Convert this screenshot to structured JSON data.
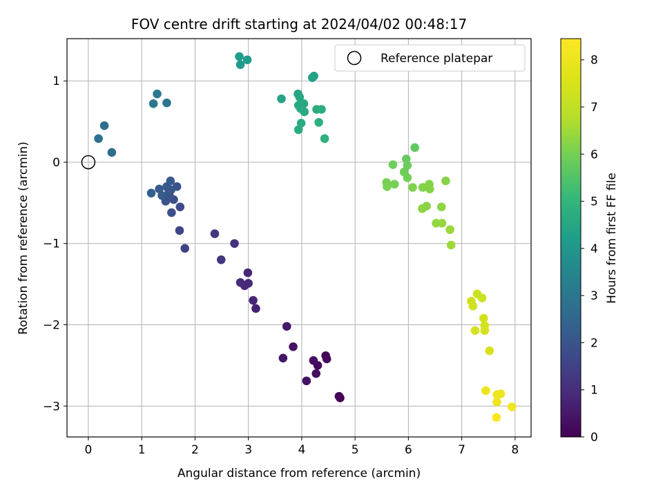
{
  "chart_data": {
    "type": "scatter",
    "title": "FOV centre drift starting at 2024/04/02 00:48:17",
    "xlabel": "Angular distance from reference (arcmin)",
    "ylabel": "Rotation from reference (arcmin)",
    "xlim": [
      -0.4,
      8.3
    ],
    "ylim": [
      -3.38,
      1.52
    ],
    "xticks": [
      0,
      1,
      2,
      3,
      4,
      5,
      6,
      7,
      8
    ],
    "yticks": [
      -3,
      -2,
      -1,
      0,
      1
    ],
    "grid": true,
    "legend": {
      "position": "top-right",
      "entries": [
        "Reference platepar"
      ]
    },
    "reference_point": {
      "x": 0,
      "y": 0
    },
    "colorbar": {
      "label": "Hours from first FF file",
      "range": [
        0,
        8.45
      ],
      "ticks": [
        0,
        1,
        2,
        3,
        4,
        5,
        6,
        7,
        8
      ],
      "colormap": "viridis"
    },
    "points": [
      {
        "x": 4.72,
        "y": -2.9,
        "h": 0.0
      },
      {
        "x": 4.7,
        "y": -2.88,
        "h": 0.05
      },
      {
        "x": 4.45,
        "y": -2.38,
        "h": 0.1
      },
      {
        "x": 4.47,
        "y": -2.42,
        "h": 0.15
      },
      {
        "x": 4.3,
        "y": -2.5,
        "h": 0.2
      },
      {
        "x": 4.27,
        "y": -2.6,
        "h": 0.25
      },
      {
        "x": 4.22,
        "y": -2.44,
        "h": 0.3
      },
      {
        "x": 4.09,
        "y": -2.69,
        "h": 0.35
      },
      {
        "x": 3.84,
        "y": -2.27,
        "h": 0.4
      },
      {
        "x": 3.65,
        "y": -2.41,
        "h": 0.45
      },
      {
        "x": 3.72,
        "y": -2.02,
        "h": 0.5
      },
      {
        "x": 3.14,
        "y": -1.8,
        "h": 0.7
      },
      {
        "x": 3.09,
        "y": -1.7,
        "h": 0.75
      },
      {
        "x": 2.99,
        "y": -1.36,
        "h": 0.8
      },
      {
        "x": 3.0,
        "y": -1.49,
        "h": 0.85
      },
      {
        "x": 2.93,
        "y": -1.52,
        "h": 0.9
      },
      {
        "x": 2.85,
        "y": -1.48,
        "h": 0.95
      },
      {
        "x": 2.74,
        "y": -1.0,
        "h": 1.1
      },
      {
        "x": 2.49,
        "y": -1.2,
        "h": 1.2
      },
      {
        "x": 2.37,
        "y": -0.88,
        "h": 1.25
      },
      {
        "x": 1.81,
        "y": -1.06,
        "h": 1.5
      },
      {
        "x": 1.71,
        "y": -0.84,
        "h": 1.6
      },
      {
        "x": 1.72,
        "y": -0.55,
        "h": 1.75
      },
      {
        "x": 1.56,
        "y": -0.62,
        "h": 1.8
      },
      {
        "x": 1.6,
        "y": -0.46,
        "h": 1.85
      },
      {
        "x": 1.66,
        "y": -0.3,
        "h": 1.9
      },
      {
        "x": 1.45,
        "y": -0.48,
        "h": 1.95
      },
      {
        "x": 1.43,
        "y": -0.42,
        "h": 2.0
      },
      {
        "x": 1.52,
        "y": -0.41,
        "h": 2.0
      },
      {
        "x": 1.5,
        "y": -0.33,
        "h": 2.05
      },
      {
        "x": 1.47,
        "y": -0.3,
        "h": 2.1
      },
      {
        "x": 1.55,
        "y": -0.34,
        "h": 2.1
      },
      {
        "x": 1.54,
        "y": -0.23,
        "h": 2.15
      },
      {
        "x": 1.33,
        "y": -0.33,
        "h": 2.2
      },
      {
        "x": 1.38,
        "y": -0.41,
        "h": 2.2
      },
      {
        "x": 1.18,
        "y": -0.38,
        "h": 2.3
      },
      {
        "x": 0.44,
        "y": 0.12,
        "h": 2.7
      },
      {
        "x": 0.3,
        "y": 0.45,
        "h": 2.75
      },
      {
        "x": 0.19,
        "y": 0.29,
        "h": 2.8
      },
      {
        "x": 1.47,
        "y": 0.73,
        "h": 3.0
      },
      {
        "x": 1.22,
        "y": 0.72,
        "h": 3.05
      },
      {
        "x": 1.29,
        "y": 0.84,
        "h": 3.1
      },
      {
        "x": 2.85,
        "y": 1.2,
        "h": 4.1
      },
      {
        "x": 2.83,
        "y": 1.3,
        "h": 4.15
      },
      {
        "x": 2.98,
        "y": 1.26,
        "h": 4.2
      },
      {
        "x": 4.2,
        "y": 1.04,
        "h": 4.35
      },
      {
        "x": 4.23,
        "y": 1.06,
        "h": 4.35
      },
      {
        "x": 3.62,
        "y": 0.78,
        "h": 4.45
      },
      {
        "x": 3.93,
        "y": 0.84,
        "h": 4.5
      },
      {
        "x": 3.96,
        "y": 0.8,
        "h": 4.5
      },
      {
        "x": 3.94,
        "y": 0.7,
        "h": 4.55
      },
      {
        "x": 4.04,
        "y": 0.72,
        "h": 4.55
      },
      {
        "x": 3.98,
        "y": 0.66,
        "h": 4.6
      },
      {
        "x": 4.05,
        "y": 0.62,
        "h": 4.6
      },
      {
        "x": 3.99,
        "y": 0.48,
        "h": 4.65
      },
      {
        "x": 3.94,
        "y": 0.4,
        "h": 4.7
      },
      {
        "x": 4.28,
        "y": 0.65,
        "h": 4.7
      },
      {
        "x": 4.37,
        "y": 0.65,
        "h": 4.75
      },
      {
        "x": 4.32,
        "y": 0.49,
        "h": 4.8
      },
      {
        "x": 4.43,
        "y": 0.29,
        "h": 4.85
      },
      {
        "x": 6.12,
        "y": 0.18,
        "h": 5.7
      },
      {
        "x": 5.96,
        "y": 0.04,
        "h": 5.8
      },
      {
        "x": 5.98,
        "y": -0.04,
        "h": 5.85
      },
      {
        "x": 5.71,
        "y": -0.03,
        "h": 5.9
      },
      {
        "x": 5.92,
        "y": -0.12,
        "h": 5.9
      },
      {
        "x": 5.98,
        "y": -0.19,
        "h": 5.95
      },
      {
        "x": 5.59,
        "y": -0.25,
        "h": 6.0
      },
      {
        "x": 5.74,
        "y": -0.27,
        "h": 6.0
      },
      {
        "x": 5.6,
        "y": -0.3,
        "h": 6.05
      },
      {
        "x": 6.08,
        "y": -0.31,
        "h": 6.1
      },
      {
        "x": 6.27,
        "y": -0.31,
        "h": 6.15
      },
      {
        "x": 6.39,
        "y": -0.27,
        "h": 6.15
      },
      {
        "x": 6.4,
        "y": -0.33,
        "h": 6.2
      },
      {
        "x": 6.7,
        "y": -0.23,
        "h": 6.2
      },
      {
        "x": 6.34,
        "y": -0.54,
        "h": 6.25
      },
      {
        "x": 6.26,
        "y": -0.57,
        "h": 6.3
      },
      {
        "x": 6.62,
        "y": -0.55,
        "h": 6.3
      },
      {
        "x": 6.52,
        "y": -0.75,
        "h": 6.35
      },
      {
        "x": 6.63,
        "y": -0.75,
        "h": 6.4
      },
      {
        "x": 6.78,
        "y": -0.83,
        "h": 6.45
      },
      {
        "x": 6.8,
        "y": -1.02,
        "h": 6.5
      },
      {
        "x": 7.29,
        "y": -1.62,
        "h": 7.2
      },
      {
        "x": 7.38,
        "y": -1.67,
        "h": 7.25
      },
      {
        "x": 7.18,
        "y": -1.71,
        "h": 7.3
      },
      {
        "x": 7.21,
        "y": -1.77,
        "h": 7.3
      },
      {
        "x": 7.41,
        "y": -1.92,
        "h": 7.35
      },
      {
        "x": 7.43,
        "y": -2.01,
        "h": 7.4
      },
      {
        "x": 7.43,
        "y": -2.07,
        "h": 7.4
      },
      {
        "x": 7.25,
        "y": -2.07,
        "h": 7.45
      },
      {
        "x": 7.52,
        "y": -2.32,
        "h": 7.5
      },
      {
        "x": 7.45,
        "y": -2.81,
        "h": 8.0
      },
      {
        "x": 7.66,
        "y": -2.86,
        "h": 8.05
      },
      {
        "x": 7.73,
        "y": -2.85,
        "h": 8.05
      },
      {
        "x": 7.66,
        "y": -2.95,
        "h": 8.1
      },
      {
        "x": 7.94,
        "y": -3.01,
        "h": 8.1
      },
      {
        "x": 7.65,
        "y": -3.14,
        "h": 8.4
      }
    ]
  }
}
